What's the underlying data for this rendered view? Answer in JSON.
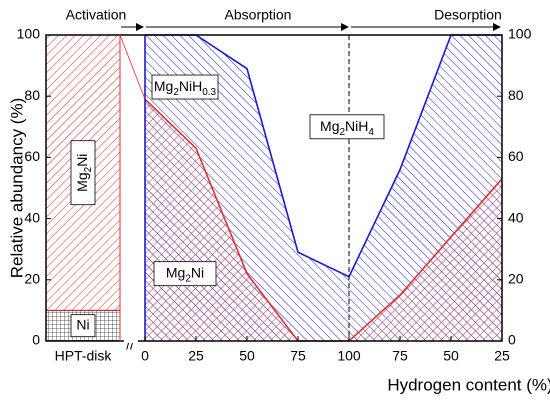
{
  "chart_data": {
    "type": "stacked-area",
    "y_label": "Relative abundancy (%)",
    "x_label": "Hydrogen content (%)",
    "annotations": [
      "Activation",
      "Absorption",
      "Desorption"
    ],
    "categories": [
      "HPT-disk",
      "0",
      "25",
      "50",
      "75",
      "100",
      "75",
      "50",
      "25"
    ],
    "ylim": [
      0,
      100
    ],
    "yticks": [
      0,
      20,
      40,
      60,
      80,
      100
    ],
    "hpt": [
      {
        "name": "Ni",
        "value": 10,
        "color": "#000000"
      },
      {
        "name": "Mg2Ni",
        "value": 90,
        "color": "#e0302f"
      }
    ],
    "series": [
      {
        "name": "Mg2Ni",
        "color": "#e0302f",
        "values": [
          null,
          79,
          63,
          22,
          0,
          0,
          15,
          34,
          53
        ]
      },
      {
        "name": "Mg2NiH0.3",
        "color": "#1a1ad0",
        "values": [
          null,
          21,
          37,
          67,
          29,
          21,
          41,
          66,
          47
        ]
      },
      {
        "name": "Mg2NiH4",
        "color": "#ffffff",
        "values": [
          null,
          0,
          0,
          11,
          71,
          79,
          44,
          0,
          0
        ]
      }
    ]
  }
}
